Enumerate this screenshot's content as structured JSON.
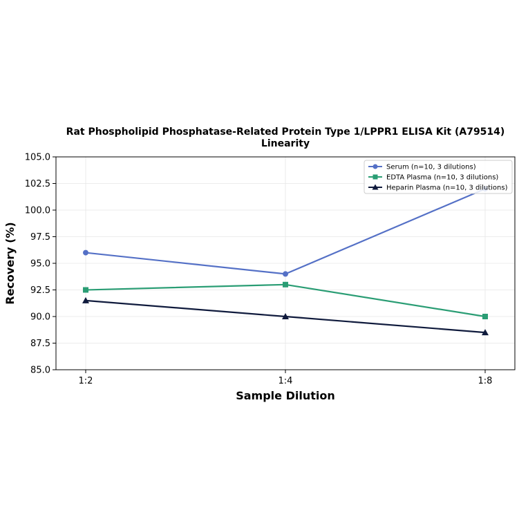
{
  "chart_data": {
    "type": "line",
    "title_line1": "Rat Phospholipid Phosphatase-Related Protein Type 1/LPPR1 ELISA Kit (A79514)",
    "title_line2": "Linearity",
    "xlabel": "Sample Dilution",
    "ylabel": "Recovery (%)",
    "categories": [
      "1:2",
      "1:4",
      "1:8"
    ],
    "ylim": [
      85.0,
      105.0
    ],
    "yticks": [
      "85.0",
      "87.5",
      "90.0",
      "92.5",
      "95.0",
      "97.5",
      "100.0",
      "102.5",
      "105.0"
    ],
    "ytick_values": [
      85.0,
      87.5,
      90.0,
      92.5,
      95.0,
      97.5,
      100.0,
      102.5,
      105.0
    ],
    "grid": true,
    "legend_position": "top-right",
    "series": [
      {
        "name": "Serum (n=10, 3 dilutions)",
        "values": [
          96.0,
          94.0,
          102.0
        ],
        "color": "#5470c6",
        "marker": "circle"
      },
      {
        "name": "EDTA Plasma (n=10, 3 dilutions)",
        "values": [
          92.5,
          93.0,
          90.0
        ],
        "color": "#2a9d74",
        "marker": "square"
      },
      {
        "name": "Heparin Plasma (n=10, 3 dilutions)",
        "values": [
          91.5,
          90.0,
          88.5
        ],
        "color": "#0f1a3c",
        "marker": "triangle"
      }
    ]
  }
}
